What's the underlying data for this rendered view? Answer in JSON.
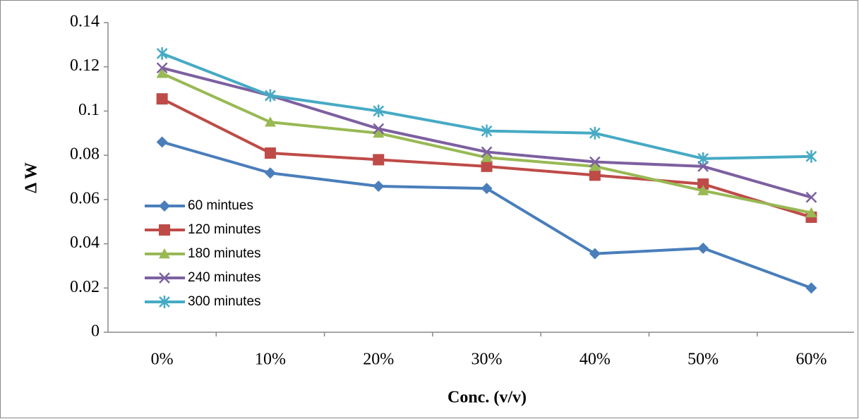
{
  "chart_data": {
    "type": "line",
    "xlabel": "Conc. (v/v)",
    "ylabel": "Δ W",
    "categories": [
      "0%",
      "10%",
      "20%",
      "30%",
      "40%",
      "50%",
      "60%"
    ],
    "series": [
      {
        "name": "60 mintues",
        "color": "#4a7ebb",
        "marker": "diamond",
        "values": [
          0.086,
          0.072,
          0.066,
          0.065,
          0.0355,
          0.038,
          0.02
        ]
      },
      {
        "name": "120 minutes",
        "color": "#be4b48",
        "marker": "square",
        "values": [
          0.1055,
          0.081,
          0.078,
          0.075,
          0.071,
          0.067,
          0.052
        ]
      },
      {
        "name": "180 minutes",
        "color": "#98b954",
        "marker": "triangle",
        "values": [
          0.117,
          0.095,
          0.09,
          0.079,
          0.075,
          0.064,
          0.054
        ]
      },
      {
        "name": "240 minutes",
        "color": "#7d60a0",
        "marker": "x",
        "values": [
          0.1195,
          0.107,
          0.092,
          0.0815,
          0.077,
          0.075,
          0.061
        ]
      },
      {
        "name": "300 minutes",
        "color": "#46aac5",
        "marker": "star",
        "values": [
          0.126,
          0.107,
          0.1,
          0.091,
          0.09,
          0.0785,
          0.0795
        ]
      }
    ],
    "ylim": [
      0,
      0.14
    ],
    "yticks": [
      0,
      0.02,
      0.04,
      0.06,
      0.08,
      0.1,
      0.12,
      0.14
    ],
    "grid": false,
    "legend": "left"
  }
}
